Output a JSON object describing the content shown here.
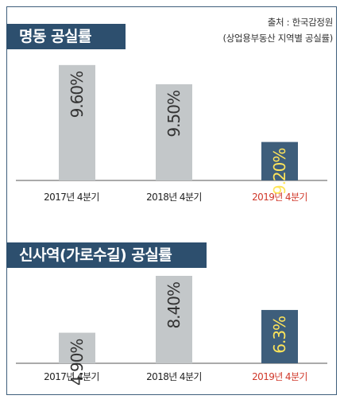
{
  "source": {
    "line1": "출처 : 한국감정원",
    "line2": "(상업용부동산 지역별 공실률)"
  },
  "colors": {
    "bar_gray": "#c3c7c9",
    "bar_highlight": "#3e5e7b",
    "label_gray": "#333333",
    "label_highlight": "#ffe55a",
    "cat_highlight": "#d0382a",
    "title_bg": "#2d4f6e"
  },
  "chart_data": [
    {
      "type": "bar",
      "title": "명동 공실률",
      "categories": [
        "2017년 4분기",
        "2018년 4분기",
        "2019년 4분기"
      ],
      "values": [
        9.6,
        9.5,
        9.2
      ],
      "value_labels": [
        "9.60%",
        "9.50%",
        "9.20%"
      ],
      "highlight_index": 2,
      "ylim": [
        9.0,
        9.62
      ]
    },
    {
      "type": "bar",
      "title": "신사역(가로수길) 공실률",
      "categories": [
        "2017년 4분기",
        "2018년 4분기",
        "2019년 4분기"
      ],
      "values": [
        4.9,
        8.4,
        6.3
      ],
      "value_labels": [
        "4.90%",
        "8.40%",
        "6.3%"
      ],
      "highlight_index": 2,
      "ylim": [
        3.02,
        8.4
      ]
    }
  ]
}
